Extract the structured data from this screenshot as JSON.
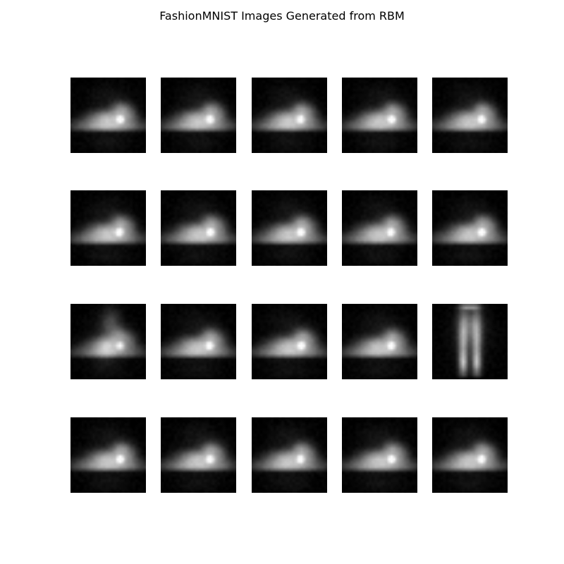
{
  "figure": {
    "title": "FashionMNIST Images Generated from RBM"
  },
  "grid": {
    "rows": 4,
    "cols": 5,
    "tiles": [
      {
        "kind": "sneaker",
        "variant": 0
      },
      {
        "kind": "sneaker",
        "variant": 1
      },
      {
        "kind": "sneaker",
        "variant": 2
      },
      {
        "kind": "sneaker",
        "variant": 3
      },
      {
        "kind": "sneaker",
        "variant": 4
      },
      {
        "kind": "sneaker",
        "variant": 5
      },
      {
        "kind": "sneaker",
        "variant": 6
      },
      {
        "kind": "sneaker",
        "variant": 7
      },
      {
        "kind": "sneaker",
        "variant": 8
      },
      {
        "kind": "sneaker",
        "variant": 9
      },
      {
        "kind": "ankle-boot-ghost",
        "variant": 10
      },
      {
        "kind": "sneaker",
        "variant": 11
      },
      {
        "kind": "sneaker",
        "variant": 12
      },
      {
        "kind": "sneaker",
        "variant": 13
      },
      {
        "kind": "trouser",
        "variant": 14
      },
      {
        "kind": "sneaker",
        "variant": 15
      },
      {
        "kind": "sneaker",
        "variant": 16
      },
      {
        "kind": "sneaker",
        "variant": 17
      },
      {
        "kind": "sneaker",
        "variant": 18
      },
      {
        "kind": "sneaker",
        "variant": 19
      }
    ]
  },
  "colors": {
    "background": "#ffffff",
    "tile_background": "#000000"
  }
}
